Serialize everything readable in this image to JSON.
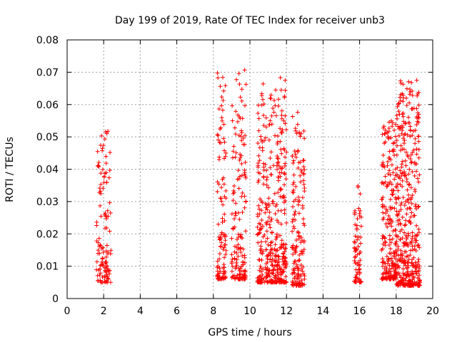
{
  "chart_data": {
    "type": "scatter",
    "title": "Day 199 of 2019, Rate Of TEC Index for receiver unb3",
    "xlabel": "GPS time / hours",
    "ylabel": "ROTI / TECUs",
    "xlim": [
      0,
      20
    ],
    "ylim": [
      0,
      0.08
    ],
    "xticks": [
      "0",
      "2",
      "4",
      "6",
      "8",
      "10",
      "12",
      "14",
      "16",
      "18",
      "20"
    ],
    "yticks": [
      "0",
      "0.01",
      "0.02",
      "0.03",
      "0.04",
      "0.05",
      "0.06",
      "0.07",
      "0.08"
    ],
    "grid": true,
    "marker": "+",
    "series_color": "#ff0000",
    "series": [
      {
        "name": "ROTI",
        "clusters": [
          {
            "x_range": [
              1.6,
              2.4
            ],
            "y_range": [
              0.005,
              0.052
            ],
            "density": 120
          },
          {
            "x_range": [
              8.2,
              8.7
            ],
            "y_range": [
              0.006,
              0.071
            ],
            "density": 110
          },
          {
            "x_range": [
              9.0,
              9.8
            ],
            "y_range": [
              0.006,
              0.071
            ],
            "density": 160
          },
          {
            "x_range": [
              10.4,
              11.6
            ],
            "y_range": [
              0.005,
              0.067
            ],
            "density": 300
          },
          {
            "x_range": [
              11.6,
              12.0
            ],
            "y_range": [
              0.005,
              0.069
            ],
            "density": 120
          },
          {
            "x_range": [
              12.3,
              13.0
            ],
            "y_range": [
              0.004,
              0.058
            ],
            "density": 160
          },
          {
            "x_range": [
              15.7,
              16.1
            ],
            "y_range": [
              0.005,
              0.035
            ],
            "density": 70
          },
          {
            "x_range": [
              17.2,
              18.0
            ],
            "y_range": [
              0.006,
              0.055
            ],
            "density": 220
          },
          {
            "x_range": [
              18.0,
              19.3
            ],
            "y_range": [
              0.004,
              0.068
            ],
            "density": 420
          }
        ]
      }
    ]
  }
}
